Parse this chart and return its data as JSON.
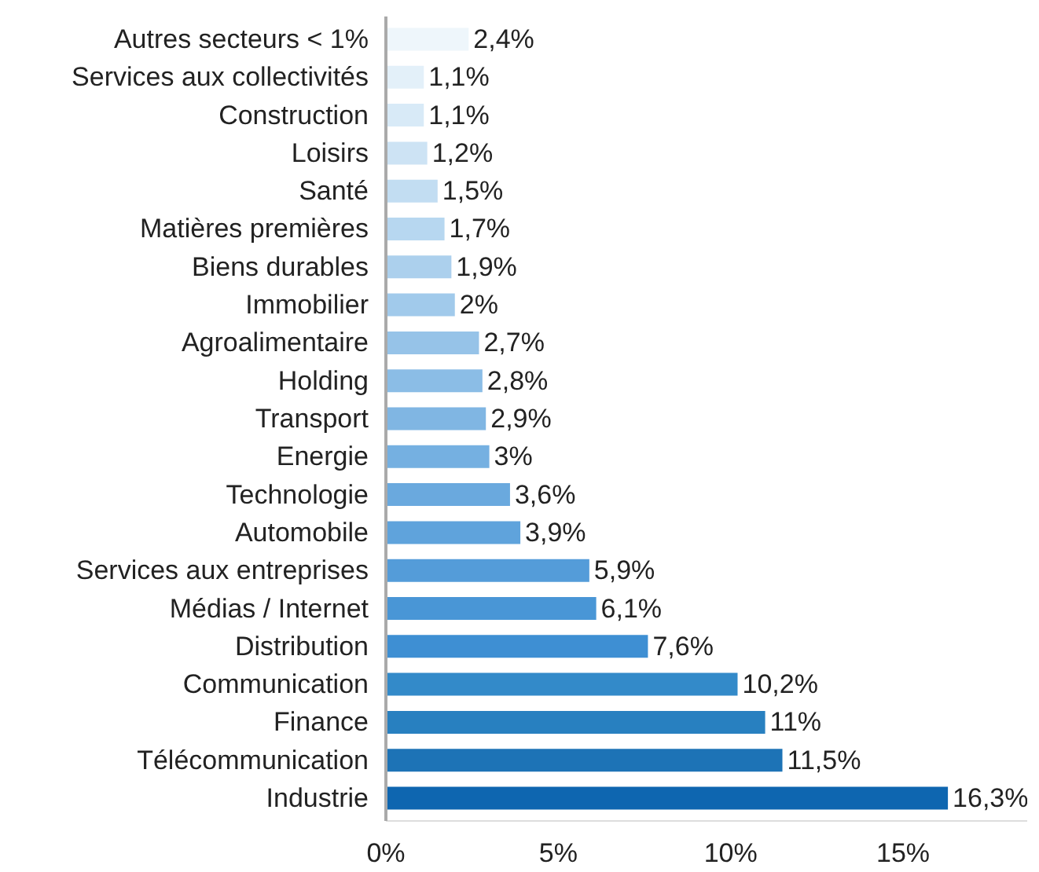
{
  "chart_data": {
    "type": "bar",
    "orientation": "horizontal",
    "categories": [
      "Autres secteurs < 1%",
      "Services aux collectivités",
      "Construction",
      "Loisirs",
      "Santé",
      "Matières premières",
      "Biens durables",
      "Immobilier",
      "Agroalimentaire",
      "Holding",
      "Transport",
      "Energie",
      "Technologie",
      "Automobile",
      "Services aux entreprises",
      "Médias / Internet",
      "Distribution",
      "Communication",
      "Finance",
      "Télécommunication",
      "Industrie"
    ],
    "values": [
      2.4,
      1.1,
      1.1,
      1.2,
      1.5,
      1.7,
      1.9,
      2,
      2.7,
      2.8,
      2.9,
      3,
      3.6,
      3.9,
      5.9,
      6.1,
      7.6,
      10.2,
      11,
      11.5,
      16.3
    ],
    "value_labels": [
      "2,4%",
      "1,1%",
      "1,1%",
      "1,2%",
      "1,5%",
      "1,7%",
      "1,9%",
      "2%",
      "2,7%",
      "2,8%",
      "2,9%",
      "3%",
      "3,6%",
      "3,9%",
      "5,9%",
      "6,1%",
      "7,6%",
      "10,2%",
      "11%",
      "11,5%",
      "16,3%"
    ],
    "colors": [
      "#eef6fb",
      "#e3f0f9",
      "#d8eaf7",
      "#cde3f4",
      "#c2ddf2",
      "#b7d7f0",
      "#acd0ed",
      "#a1caeb",
      "#96c3e8",
      "#8bbde6",
      "#80b6e3",
      "#75b0e1",
      "#6aa9de",
      "#5fa3dc",
      "#549cd9",
      "#4996d6",
      "#3e8fd3",
      "#338ac9",
      "#2880c0",
      "#1d73b6",
      "#0e66b0"
    ],
    "xlim": [
      0,
      18.6
    ],
    "xticks": [
      {
        "value": 0,
        "label": "0%"
      },
      {
        "value": 5,
        "label": "5%"
      },
      {
        "value": 10,
        "label": "10%"
      },
      {
        "value": 15,
        "label": "15%"
      }
    ],
    "grid": false
  }
}
